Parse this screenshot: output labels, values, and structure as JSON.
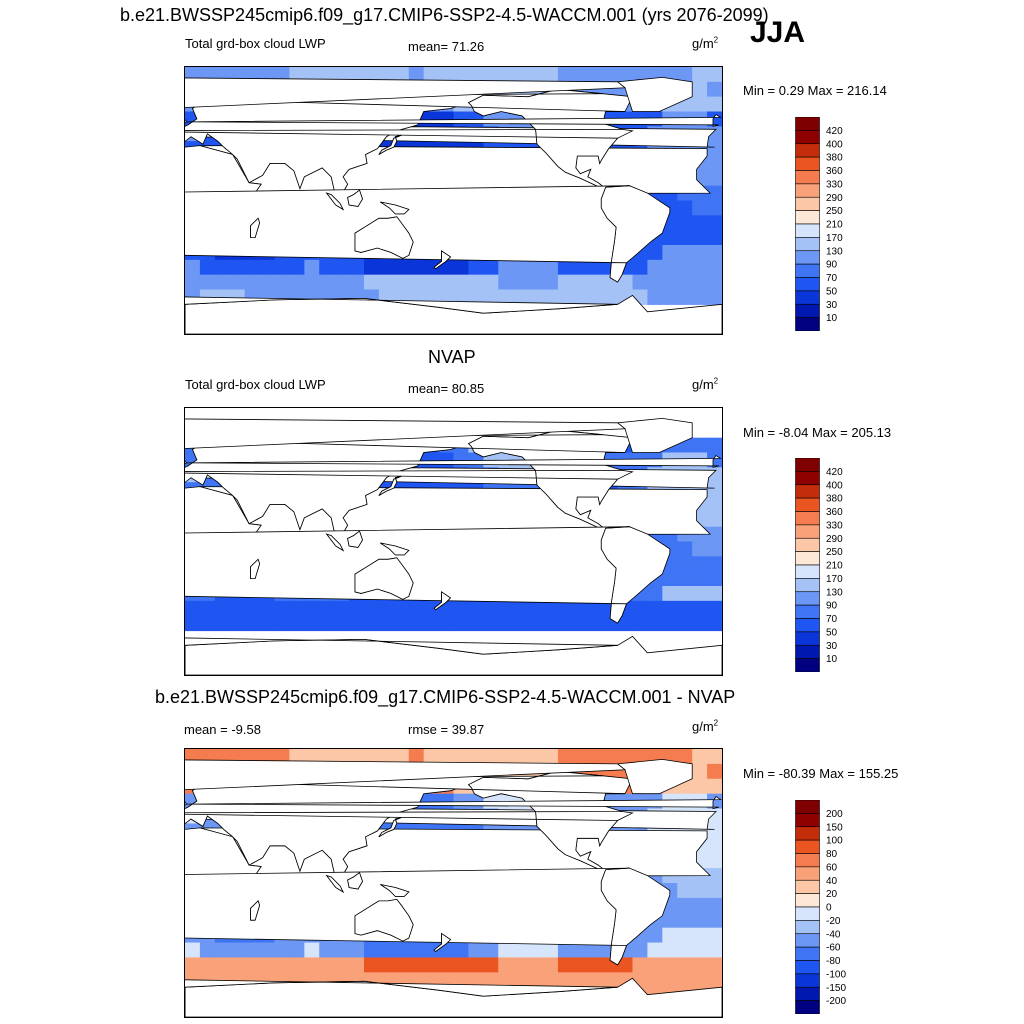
{
  "header": {
    "main_title": "b.e21.BWSSP245cmip6.f09_g17.CMIP6-SSP2-4.5-WACCM.001 (yrs 2076-2099)",
    "season": "JJA"
  },
  "panels": [
    {
      "title": "",
      "variable_label": "Total grd-box cloud LWP",
      "stat_label": "mean=  71.26",
      "units_base": "g/m",
      "units_exp": "2",
      "minmax": "Min =   0.29 Max = 216.14",
      "kind": "model"
    },
    {
      "title": "NVAP",
      "variable_label": "Total grd-box cloud LWP",
      "stat_label": "mean=  80.85",
      "units_base": "g/m",
      "units_exp": "2",
      "minmax": "Min =  -8.04 Max = 205.13",
      "kind": "obs"
    },
    {
      "title": "b.e21.BWSSP245cmip6.f09_g17.CMIP6-SSP2-4.5-WACCM.001 - NVAP",
      "variable_label": "mean =  -9.58",
      "stat_label": "rmse =  39.87",
      "units_base": "g/m",
      "units_exp": "2",
      "minmax": "Min = -80.39 Max = 155.25",
      "kind": "diff"
    }
  ],
  "chart_data": [
    {
      "type": "heatmap",
      "title": "b.e21.BWSSP245cmip6.f09_g17.CMIP6-SSP2-4.5-WACCM.001 (yrs 2076-2099)",
      "subtitle": "Total grd-box cloud LWP",
      "units": "g/m2",
      "mean": 71.26,
      "min": 0.29,
      "max": 216.14,
      "colorbar_levels": [
        10,
        30,
        50,
        70,
        90,
        130,
        170,
        210,
        250,
        290,
        330,
        360,
        380,
        400,
        420
      ],
      "colorbar_labels": [
        "420",
        "400",
        "380",
        "360",
        "330",
        "290",
        "250",
        "210",
        "170",
        "130",
        "90",
        "70",
        "50",
        "30",
        "10"
      ],
      "colors": [
        "#000080",
        "#0018b0",
        "#0a35d8",
        "#1f55f0",
        "#3f75f5",
        "#6d97f5",
        "#a5c2f7",
        "#d6e5fb",
        "#fde7d6",
        "#fbc7a7",
        "#f9a27a",
        "#f47c4f",
        "#ea5522",
        "#c42d0a",
        "#8f0000",
        "#7f0000"
      ]
    },
    {
      "type": "heatmap",
      "title": "NVAP",
      "subtitle": "Total grd-box cloud LWP",
      "units": "g/m2",
      "mean": 80.85,
      "min": -8.04,
      "max": 205.13,
      "colorbar_levels": [
        10,
        30,
        50,
        70,
        90,
        130,
        170,
        210,
        250,
        290,
        330,
        360,
        380,
        400,
        420
      ],
      "colorbar_labels": [
        "420",
        "400",
        "380",
        "360",
        "330",
        "290",
        "250",
        "210",
        "170",
        "130",
        "90",
        "70",
        "50",
        "30",
        "10"
      ]
    },
    {
      "type": "heatmap",
      "title": "b.e21.BWSSP245cmip6.f09_g17.CMIP6-SSP2-4.5-WACCM.001 - NVAP",
      "units": "g/m2",
      "mean": -9.58,
      "rmse": 39.87,
      "min": -80.39,
      "max": 155.25,
      "colorbar_levels": [
        -200,
        -150,
        -100,
        -80,
        -60,
        -40,
        -20,
        0,
        20,
        40,
        60,
        80,
        100,
        150,
        200
      ],
      "colorbar_labels": [
        "200",
        "150",
        "100",
        "80",
        "60",
        "40",
        "20",
        "0",
        "-20",
        "-40",
        "-60",
        "-80",
        "-100",
        "-150",
        "-200"
      ]
    }
  ]
}
